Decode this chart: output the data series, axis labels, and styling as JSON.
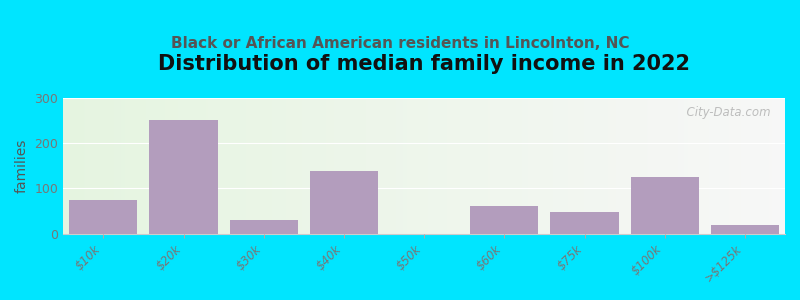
{
  "title": "Distribution of median family income in 2022",
  "subtitle": "Black or African American residents in Lincolnton, NC",
  "categories": [
    "$10k",
    "$20k",
    "$30k",
    "$40k",
    "$50k",
    "$60k",
    "$75k",
    "$100k",
    ">$125k"
  ],
  "values": [
    75,
    250,
    30,
    138,
    0,
    62,
    48,
    125,
    20
  ],
  "bar_color": "#b39dbd",
  "background_outer": "#00e5ff",
  "ylabel": "families",
  "ylim": [
    0,
    300
  ],
  "yticks": [
    0,
    100,
    200,
    300
  ],
  "title_fontsize": 15,
  "subtitle_fontsize": 11,
  "subtitle_color": "#555555",
  "watermark": "  City-Data.com",
  "tick_color": "#777777",
  "ylabel_color": "#555555"
}
